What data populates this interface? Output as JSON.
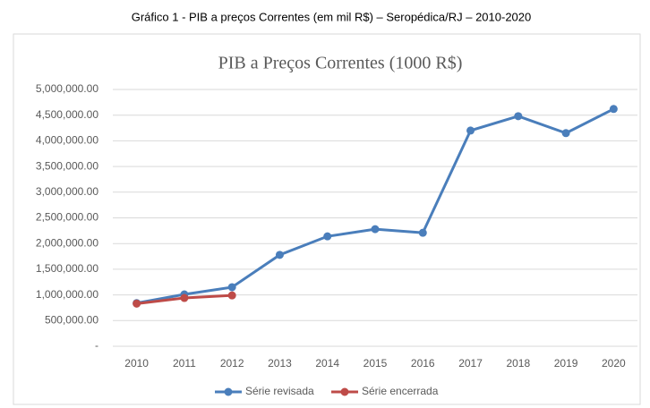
{
  "caption": "Gráfico 1 - PIB a preços Correntes (em mil R$) – Seropédica/RJ – 2010-2020",
  "chart_data": {
    "type": "line",
    "title": "PIB a Preços Correntes (1000 R$)",
    "categories": [
      "2010",
      "2011",
      "2012",
      "2013",
      "2014",
      "2015",
      "2016",
      "2017",
      "2018",
      "2019",
      "2020"
    ],
    "series": [
      {
        "name": "Série revisada",
        "color": "#4a7ebb",
        "values": [
          840000,
          1010000,
          1150000,
          1780000,
          2140000,
          2280000,
          2210000,
          4200000,
          4480000,
          4150000,
          4620000
        ]
      },
      {
        "name": "Série encerrada",
        "color": "#be4b48",
        "values": [
          830000,
          940000,
          990000,
          null,
          null,
          null,
          null,
          null,
          null,
          null,
          null
        ]
      }
    ],
    "ylim": [
      0,
      5000000
    ],
    "yticks": [
      {
        "value": 0,
        "label": "-"
      },
      {
        "value": 500000,
        "label": "500,000.00"
      },
      {
        "value": 1000000,
        "label": "1,000,000.00"
      },
      {
        "value": 1500000,
        "label": "1,500,000.00"
      },
      {
        "value": 2000000,
        "label": "2,000,000.00"
      },
      {
        "value": 2500000,
        "label": "2,500,000.00"
      },
      {
        "value": 3000000,
        "label": "3,000,000.00"
      },
      {
        "value": 3500000,
        "label": "3,500,000.00"
      },
      {
        "value": 4000000,
        "label": "4,000,000.00"
      },
      {
        "value": 4500000,
        "label": "4,500,000.00"
      },
      {
        "value": 5000000,
        "label": "5,000,000.00"
      }
    ],
    "grid": true,
    "legend": "bottom"
  }
}
